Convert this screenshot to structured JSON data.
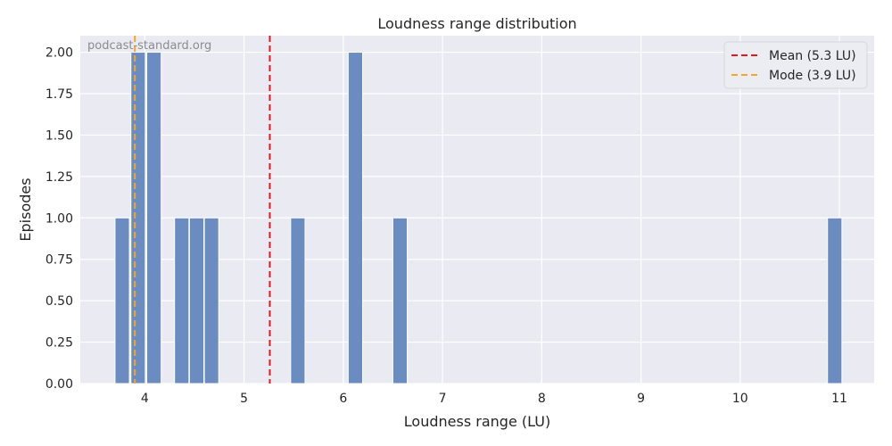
{
  "chart_data": {
    "type": "bar",
    "title": "Loudness range distribution",
    "xlabel": "Loudness range (LU)",
    "ylabel": "Episodes",
    "watermark": "podcast-standard.org",
    "xlim": [
      3.35,
      11.35
    ],
    "ylim": [
      0,
      2.1
    ],
    "grid": true,
    "legend_placement": "top-right",
    "bin_width": 0.145,
    "bins": [
      {
        "x": 3.7,
        "value": 1
      },
      {
        "x": 3.86,
        "value": 2
      },
      {
        "x": 4.02,
        "value": 2
      },
      {
        "x": 4.3,
        "value": 1
      },
      {
        "x": 4.45,
        "value": 1
      },
      {
        "x": 4.6,
        "value": 1
      },
      {
        "x": 5.47,
        "value": 1
      },
      {
        "x": 6.05,
        "value": 2
      },
      {
        "x": 6.5,
        "value": 1
      },
      {
        "x": 10.88,
        "value": 1
      }
    ],
    "x_ticks": [
      4,
      5,
      6,
      7,
      8,
      9,
      10,
      11
    ],
    "y_ticks": [
      "0.00",
      "0.25",
      "0.50",
      "0.75",
      "1.00",
      "1.25",
      "1.50",
      "1.75",
      "2.00"
    ],
    "reference_lines": [
      {
        "name": "Mean (5.3 LU)",
        "x": 5.26,
        "color": "#e31a1c"
      },
      {
        "name": "Mode (3.9 LU)",
        "x": 3.9,
        "color": "#f5a623"
      }
    ],
    "colors": {
      "bar": "#6b8cc0",
      "background": "#eaeaf2",
      "grid": "#ffffff"
    }
  }
}
